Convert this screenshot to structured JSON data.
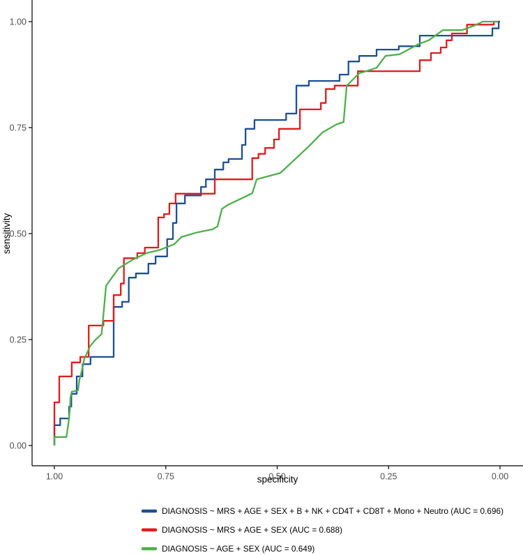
{
  "figure": {
    "x_label": "specificity",
    "y_label": "sensitivity"
  },
  "legend": {
    "items": [
      {
        "id": "full-model",
        "label": "DIAGNOSIS ~ MRS + AGE + SEX + B + NK + CD4T + CD8T + Mono + Neutro (AUC = 0.696)",
        "color": "#1b4f94"
      },
      {
        "id": "mrs-age-sex",
        "label": "DIAGNOSIS ~ MRS + AGE + SEX  (AUC = 0.688)",
        "color": "#e31a1c"
      },
      {
        "id": "age-sex",
        "label": "DIAGNOSIS ~ AGE + SEX (AUC = 0.649)",
        "color": "#4daf4a"
      }
    ]
  },
  "chart_data": {
    "type": "line",
    "subtype": "roc-step-curves",
    "title": "",
    "xlabel": "specificity",
    "ylabel": "sensitivity",
    "grid": false,
    "legend_position": "bottom",
    "x_axis": {
      "range": [
        1.0,
        0.0
      ],
      "reversed": true,
      "ticks": [
        1.0,
        0.75,
        0.5,
        0.25,
        0.0
      ]
    },
    "y_axis": {
      "range": [
        0.0,
        1.0
      ],
      "ticks": [
        0.0,
        0.25,
        0.5,
        0.75,
        1.0
      ]
    },
    "series": [
      {
        "id": "full-model",
        "name": "DIAGNOSIS ~ MRS + AGE + SEX + B + NK + CD4T + CD8T + Mono + Neutro",
        "auc": 0.696,
        "color": "#1b4f94",
        "points": [
          [
            1.0,
            0.0
          ],
          [
            1.0,
            0.048
          ],
          [
            0.987,
            0.048
          ],
          [
            0.987,
            0.064
          ],
          [
            0.967,
            0.064
          ],
          [
            0.967,
            0.092
          ],
          [
            0.962,
            0.092
          ],
          [
            0.962,
            0.122
          ],
          [
            0.95,
            0.122
          ],
          [
            0.95,
            0.163
          ],
          [
            0.937,
            0.163
          ],
          [
            0.937,
            0.192
          ],
          [
            0.919,
            0.192
          ],
          [
            0.919,
            0.209
          ],
          [
            0.867,
            0.209
          ],
          [
            0.867,
            0.327
          ],
          [
            0.848,
            0.327
          ],
          [
            0.848,
            0.339
          ],
          [
            0.833,
            0.339
          ],
          [
            0.833,
            0.396
          ],
          [
            0.817,
            0.396
          ],
          [
            0.817,
            0.406
          ],
          [
            0.789,
            0.406
          ],
          [
            0.789,
            0.429
          ],
          [
            0.773,
            0.429
          ],
          [
            0.773,
            0.446
          ],
          [
            0.747,
            0.446
          ],
          [
            0.747,
            0.487
          ],
          [
            0.734,
            0.487
          ],
          [
            0.734,
            0.525
          ],
          [
            0.726,
            0.525
          ],
          [
            0.726,
            0.571
          ],
          [
            0.707,
            0.571
          ],
          [
            0.707,
            0.59
          ],
          [
            0.671,
            0.59
          ],
          [
            0.671,
            0.61
          ],
          [
            0.66,
            0.61
          ],
          [
            0.66,
            0.628
          ],
          [
            0.64,
            0.628
          ],
          [
            0.64,
            0.651
          ],
          [
            0.621,
            0.651
          ],
          [
            0.621,
            0.668
          ],
          [
            0.609,
            0.668
          ],
          [
            0.609,
            0.676
          ],
          [
            0.579,
            0.676
          ],
          [
            0.579,
            0.709
          ],
          [
            0.571,
            0.709
          ],
          [
            0.571,
            0.747
          ],
          [
            0.551,
            0.747
          ],
          [
            0.551,
            0.768
          ],
          [
            0.48,
            0.768
          ],
          [
            0.48,
            0.783
          ],
          [
            0.457,
            0.783
          ],
          [
            0.457,
            0.849
          ],
          [
            0.429,
            0.849
          ],
          [
            0.429,
            0.86
          ],
          [
            0.36,
            0.86
          ],
          [
            0.36,
            0.875
          ],
          [
            0.34,
            0.875
          ],
          [
            0.34,
            0.906
          ],
          [
            0.316,
            0.906
          ],
          [
            0.316,
            0.919
          ],
          [
            0.277,
            0.919
          ],
          [
            0.277,
            0.934
          ],
          [
            0.227,
            0.934
          ],
          [
            0.227,
            0.942
          ],
          [
            0.18,
            0.942
          ],
          [
            0.18,
            0.967
          ],
          [
            0.017,
            0.967
          ],
          [
            0.017,
            0.984
          ],
          [
            0.003,
            0.984
          ],
          [
            0.003,
            1.0
          ],
          [
            0.0,
            1.0
          ]
        ]
      },
      {
        "id": "mrs-age-sex",
        "name": "DIAGNOSIS ~ MRS + AGE + SEX",
        "auc": 0.688,
        "color": "#e31a1c",
        "points": [
          [
            1.0,
            0.0
          ],
          [
            1.0,
            0.102
          ],
          [
            0.989,
            0.102
          ],
          [
            0.989,
            0.163
          ],
          [
            0.961,
            0.163
          ],
          [
            0.961,
            0.196
          ],
          [
            0.942,
            0.196
          ],
          [
            0.942,
            0.209
          ],
          [
            0.923,
            0.209
          ],
          [
            0.923,
            0.283
          ],
          [
            0.89,
            0.283
          ],
          [
            0.89,
            0.294
          ],
          [
            0.867,
            0.294
          ],
          [
            0.867,
            0.355
          ],
          [
            0.851,
            0.355
          ],
          [
            0.851,
            0.382
          ],
          [
            0.844,
            0.382
          ],
          [
            0.844,
            0.442
          ],
          [
            0.814,
            0.442
          ],
          [
            0.814,
            0.454
          ],
          [
            0.797,
            0.454
          ],
          [
            0.797,
            0.467
          ],
          [
            0.767,
            0.467
          ],
          [
            0.767,
            0.538
          ],
          [
            0.754,
            0.538
          ],
          [
            0.754,
            0.546
          ],
          [
            0.742,
            0.546
          ],
          [
            0.742,
            0.571
          ],
          [
            0.728,
            0.571
          ],
          [
            0.728,
            0.594
          ],
          [
            0.64,
            0.594
          ],
          [
            0.64,
            0.628
          ],
          [
            0.556,
            0.628
          ],
          [
            0.556,
            0.678
          ],
          [
            0.542,
            0.678
          ],
          [
            0.542,
            0.688
          ],
          [
            0.527,
            0.688
          ],
          [
            0.527,
            0.702
          ],
          [
            0.507,
            0.702
          ],
          [
            0.507,
            0.722
          ],
          [
            0.496,
            0.722
          ],
          [
            0.496,
            0.747
          ],
          [
            0.449,
            0.747
          ],
          [
            0.449,
            0.793
          ],
          [
            0.402,
            0.793
          ],
          [
            0.402,
            0.808
          ],
          [
            0.391,
            0.808
          ],
          [
            0.391,
            0.841
          ],
          [
            0.371,
            0.841
          ],
          [
            0.371,
            0.849
          ],
          [
            0.319,
            0.849
          ],
          [
            0.319,
            0.883
          ],
          [
            0.18,
            0.883
          ],
          [
            0.18,
            0.909
          ],
          [
            0.155,
            0.909
          ],
          [
            0.155,
            0.926
          ],
          [
            0.133,
            0.926
          ],
          [
            0.133,
            0.939
          ],
          [
            0.12,
            0.939
          ],
          [
            0.12,
            0.956
          ],
          [
            0.108,
            0.956
          ],
          [
            0.108,
            0.972
          ],
          [
            0.074,
            0.972
          ],
          [
            0.074,
            0.993
          ],
          [
            0.014,
            0.993
          ],
          [
            0.014,
            1.0
          ],
          [
            0.005,
            1.0
          ]
        ]
      },
      {
        "id": "age-sex",
        "name": "DIAGNOSIS ~ AGE + SEX",
        "auc": 0.649,
        "color": "#4daf4a",
        "points": [
          [
            1.0,
            0.0
          ],
          [
            1.0,
            0.02
          ],
          [
            0.973,
            0.02
          ],
          [
            0.968,
            0.056
          ],
          [
            0.965,
            0.089
          ],
          [
            0.964,
            0.113
          ],
          [
            0.961,
            0.127
          ],
          [
            0.947,
            0.13
          ],
          [
            0.944,
            0.155
          ],
          [
            0.939,
            0.174
          ],
          [
            0.933,
            0.204
          ],
          [
            0.926,
            0.22
          ],
          [
            0.92,
            0.234
          ],
          [
            0.909,
            0.248
          ],
          [
            0.894,
            0.263
          ],
          [
            0.889,
            0.319
          ],
          [
            0.884,
            0.377
          ],
          [
            0.856,
            0.418
          ],
          [
            0.825,
            0.438
          ],
          [
            0.793,
            0.454
          ],
          [
            0.762,
            0.462
          ],
          [
            0.731,
            0.475
          ],
          [
            0.715,
            0.492
          ],
          [
            0.679,
            0.503
          ],
          [
            0.645,
            0.51
          ],
          [
            0.634,
            0.517
          ],
          [
            0.624,
            0.558
          ],
          [
            0.612,
            0.567
          ],
          [
            0.556,
            0.595
          ],
          [
            0.546,
            0.628
          ],
          [
            0.493,
            0.643
          ],
          [
            0.429,
            0.706
          ],
          [
            0.398,
            0.739
          ],
          [
            0.366,
            0.758
          ],
          [
            0.351,
            0.763
          ],
          [
            0.344,
            0.849
          ],
          [
            0.316,
            0.878
          ],
          [
            0.277,
            0.891
          ],
          [
            0.257,
            0.919
          ],
          [
            0.225,
            0.923
          ],
          [
            0.183,
            0.947
          ],
          [
            0.16,
            0.956
          ],
          [
            0.128,
            0.98
          ],
          [
            0.085,
            0.98
          ],
          [
            0.057,
            0.991
          ],
          [
            0.039,
            1.0
          ],
          [
            0.005,
            1.0
          ]
        ]
      }
    ]
  }
}
